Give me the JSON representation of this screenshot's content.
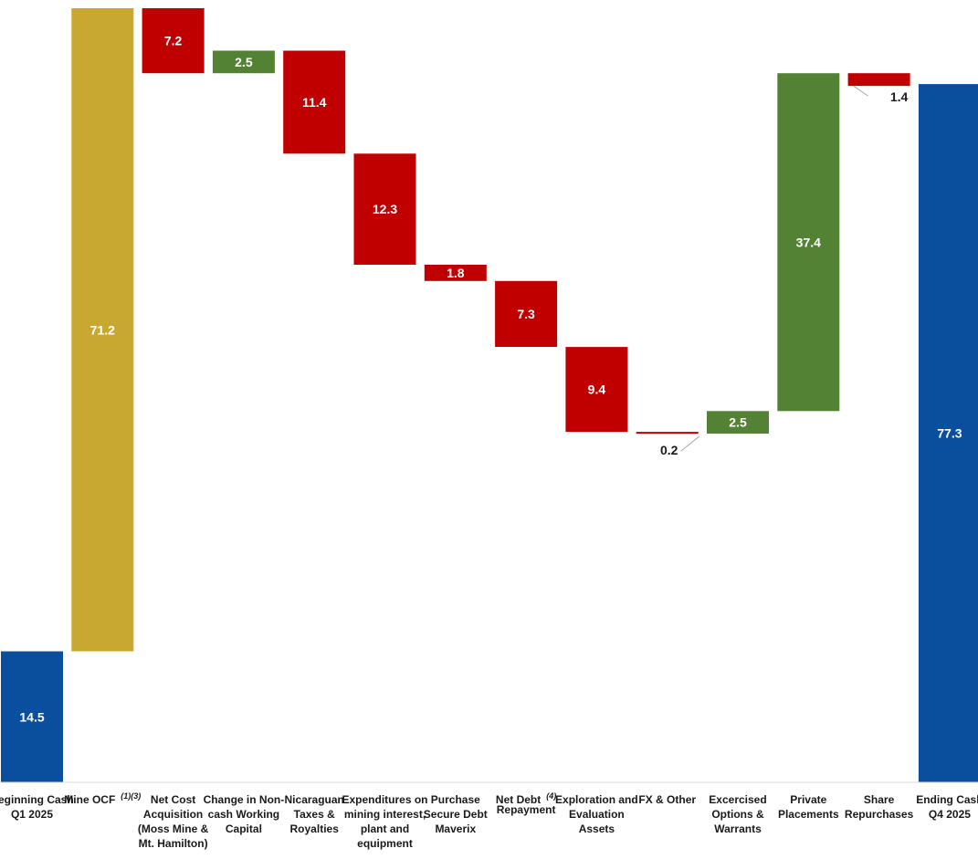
{
  "chart_data": {
    "type": "bar",
    "subtype": "waterfall",
    "title": "",
    "xlabel": "",
    "ylabel": "",
    "grid": false,
    "legend": "none",
    "colors": {
      "total": "#0A4F9E",
      "ocf": "#C9A832",
      "increase": "#548235",
      "decrease": "#C00000"
    },
    "categories": [
      {
        "label": [
          "Beginning Cash",
          "Q1 2025"
        ]
      },
      {
        "label": [
          "Mine OCF"
        ],
        "superscript": "(1)(3)"
      },
      {
        "label": [
          "Net Cost",
          "Acquisition",
          "(Moss Mine &",
          "Mt. Hamilton)"
        ]
      },
      {
        "label": [
          "Change in Non-",
          "cash Working",
          "Capital"
        ]
      },
      {
        "label": [
          "Nicaraguan",
          "Taxes &",
          "Royalties"
        ]
      },
      {
        "label": [
          "Expenditures on",
          "mining interest,",
          "plant and",
          "equipment"
        ]
      },
      {
        "label": [
          "Purchase",
          "Secure Debt",
          "Maverix"
        ]
      },
      {
        "label": [
          "Net Debt",
          "Repayment"
        ],
        "superscript": "(4)"
      },
      {
        "label": [
          "Exploration and",
          "Evaluation",
          "Assets"
        ]
      },
      {
        "label": [
          "FX & Other"
        ]
      },
      {
        "label": [
          "Excercised",
          "Options &",
          "Warrants"
        ]
      },
      {
        "label": [
          "Private",
          "Placements"
        ]
      },
      {
        "label": [
          "Share",
          "Repurchases"
        ]
      },
      {
        "label": [
          "Ending Cash",
          "Q4 2025"
        ]
      }
    ],
    "steps": [
      {
        "kind": "total",
        "value": 14.5,
        "label": "14.5"
      },
      {
        "kind": "ocf",
        "value": 71.2,
        "label": "71.2"
      },
      {
        "kind": "decrease",
        "value": -7.2,
        "label": "7.2"
      },
      {
        "kind": "increase",
        "value": 2.5,
        "label": "2.5"
      },
      {
        "kind": "decrease",
        "value": -11.4,
        "label": "11.4"
      },
      {
        "kind": "decrease",
        "value": -12.3,
        "label": "12.3"
      },
      {
        "kind": "decrease",
        "value": -1.8,
        "label": "1.8"
      },
      {
        "kind": "decrease",
        "value": -7.3,
        "label": "7.3"
      },
      {
        "kind": "decrease",
        "value": -9.4,
        "label": "9.4"
      },
      {
        "kind": "decrease",
        "value": -0.2,
        "label": "0.2",
        "label_outside": true
      },
      {
        "kind": "increase",
        "value": 2.5,
        "label": "2.5"
      },
      {
        "kind": "increase",
        "value": 37.4,
        "label": "37.4"
      },
      {
        "kind": "decrease",
        "value": -1.4,
        "label": "1.4",
        "label_outside": true
      },
      {
        "kind": "total",
        "value": 77.3,
        "label": "77.3"
      }
    ]
  }
}
